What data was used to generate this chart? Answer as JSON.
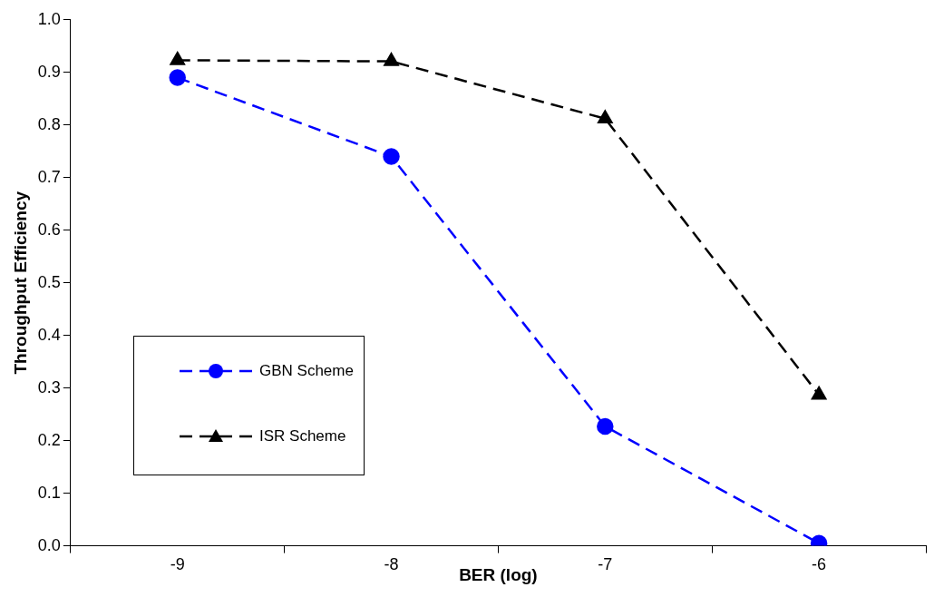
{
  "chart_data": {
    "type": "line",
    "xlabel": "BER (log)",
    "ylabel": "Throughput Efficiency",
    "categories": [
      "-9",
      "-8",
      "-7",
      "-6"
    ],
    "series": [
      {
        "name": "GBN Scheme",
        "color": "#0000ff",
        "values": [
          0.89,
          0.74,
          0.227,
          0.005
        ],
        "marker": "circle"
      },
      {
        "name": "ISR Scheme",
        "color": "#000000",
        "values": [
          0.923,
          0.921,
          0.812,
          0.287
        ],
        "marker": "triangle"
      }
    ],
    "ylim": [
      0,
      1
    ],
    "yticks": [
      {
        "value": 0,
        "label": "0.0"
      },
      {
        "value": 0.1,
        "label": "0.1"
      },
      {
        "value": 0.2,
        "label": "0.2"
      },
      {
        "value": 0.3,
        "label": "0.3"
      },
      {
        "value": 0.4,
        "label": "0.4"
      },
      {
        "value": 0.5,
        "label": "0.5"
      },
      {
        "value": 0.6,
        "label": "0.6"
      },
      {
        "value": 0.7,
        "label": "0.7"
      },
      {
        "value": 0.8,
        "label": "0.8"
      },
      {
        "value": 0.9,
        "label": "0.9"
      },
      {
        "value": 1,
        "label": "1.0"
      }
    ],
    "grid": false,
    "legend": "left",
    "line_style": "dashed"
  }
}
